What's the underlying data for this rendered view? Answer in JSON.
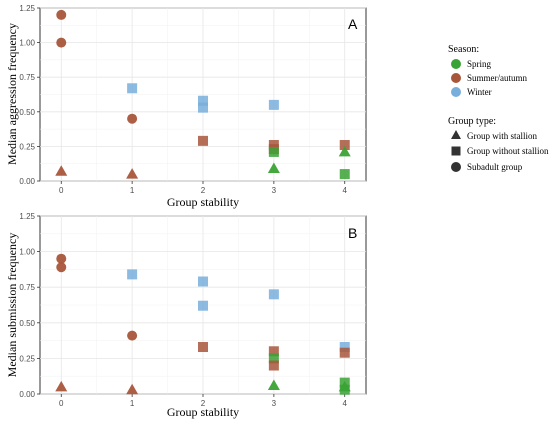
{
  "chart_data": [
    {
      "type": "scatter",
      "panel": "A",
      "xlabel": "Group stability",
      "ylabel": "Median aggression frequency",
      "xlim": [
        -0.3,
        4.3
      ],
      "ylim": [
        0,
        1.25
      ],
      "xticks": [
        "0",
        "1",
        "2",
        "3",
        "4"
      ],
      "yticks": [
        "0.00",
        "0.25",
        "0.50",
        "0.75",
        "1.00",
        "1.25"
      ],
      "grid": true,
      "points": [
        {
          "x": 0,
          "y": 1.2,
          "season": "summer",
          "group": "subadult"
        },
        {
          "x": 0,
          "y": 1.0,
          "season": "summer",
          "group": "subadult"
        },
        {
          "x": 0,
          "y": 0.07,
          "season": "summer",
          "group": "stallion"
        },
        {
          "x": 1,
          "y": 0.67,
          "season": "winter",
          "group": "nostallion"
        },
        {
          "x": 1,
          "y": 0.45,
          "season": "summer",
          "group": "subadult"
        },
        {
          "x": 1,
          "y": 0.05,
          "season": "summer",
          "group": "stallion"
        },
        {
          "x": 2,
          "y": 0.58,
          "season": "winter",
          "group": "nostallion"
        },
        {
          "x": 2,
          "y": 0.53,
          "season": "winter",
          "group": "nostallion"
        },
        {
          "x": 2,
          "y": 0.29,
          "season": "summer",
          "group": "nostallion"
        },
        {
          "x": 3,
          "y": 0.55,
          "season": "winter",
          "group": "nostallion"
        },
        {
          "x": 3,
          "y": 0.26,
          "season": "summer",
          "group": "nostallion"
        },
        {
          "x": 3,
          "y": 0.23,
          "season": "summer",
          "group": "nostallion"
        },
        {
          "x": 3,
          "y": 0.21,
          "season": "spring",
          "group": "nostallion"
        },
        {
          "x": 3,
          "y": 0.09,
          "season": "spring",
          "group": "stallion"
        },
        {
          "x": 4,
          "y": 0.26,
          "season": "summer",
          "group": "nostallion"
        },
        {
          "x": 4,
          "y": 0.21,
          "season": "spring",
          "group": "stallion"
        },
        {
          "x": 4,
          "y": 0.05,
          "season": "spring",
          "group": "nostallion"
        }
      ]
    },
    {
      "type": "scatter",
      "panel": "B",
      "xlabel": "Group stability",
      "ylabel": "Median submission frequency",
      "xlim": [
        -0.3,
        4.3
      ],
      "ylim": [
        0,
        1.25
      ],
      "xticks": [
        "0",
        "1",
        "2",
        "3",
        "4"
      ],
      "yticks": [
        "0.00",
        "0.25",
        "0.50",
        "0.75",
        "1.00",
        "1.25"
      ],
      "grid": true,
      "points": [
        {
          "x": 0,
          "y": 0.95,
          "season": "summer",
          "group": "subadult"
        },
        {
          "x": 0,
          "y": 0.89,
          "season": "summer",
          "group": "subadult"
        },
        {
          "x": 0,
          "y": 0.05,
          "season": "summer",
          "group": "stallion"
        },
        {
          "x": 1,
          "y": 0.84,
          "season": "winter",
          "group": "nostallion"
        },
        {
          "x": 1,
          "y": 0.41,
          "season": "summer",
          "group": "subadult"
        },
        {
          "x": 1,
          "y": 0.03,
          "season": "summer",
          "group": "stallion"
        },
        {
          "x": 2,
          "y": 0.79,
          "season": "winter",
          "group": "nostallion"
        },
        {
          "x": 2,
          "y": 0.62,
          "season": "winter",
          "group": "nostallion"
        },
        {
          "x": 2,
          "y": 0.33,
          "season": "summer",
          "group": "nostallion"
        },
        {
          "x": 3,
          "y": 0.7,
          "season": "winter",
          "group": "nostallion"
        },
        {
          "x": 3,
          "y": 0.3,
          "season": "summer",
          "group": "nostallion"
        },
        {
          "x": 3,
          "y": 0.25,
          "season": "spring",
          "group": "nostallion"
        },
        {
          "x": 3,
          "y": 0.2,
          "season": "summer",
          "group": "nostallion"
        },
        {
          "x": 3,
          "y": 0.06,
          "season": "spring",
          "group": "stallion"
        },
        {
          "x": 4,
          "y": 0.33,
          "season": "winter",
          "group": "nostallion"
        },
        {
          "x": 4,
          "y": 0.29,
          "season": "summer",
          "group": "nostallion"
        },
        {
          "x": 4,
          "y": 0.08,
          "season": "spring",
          "group": "nostallion"
        },
        {
          "x": 4,
          "y": 0.05,
          "season": "spring",
          "group": "stallion"
        },
        {
          "x": 4,
          "y": 0.03,
          "season": "spring",
          "group": "nostallion"
        }
      ]
    }
  ],
  "legend": {
    "season_title": "Season:",
    "season_items": [
      {
        "key": "spring",
        "label": "Spring",
        "color": "#3aa335"
      },
      {
        "key": "summer",
        "label": "Summer/autumn",
        "color": "#a8563b"
      },
      {
        "key": "winter",
        "label": "Winter",
        "color": "#78aedb"
      }
    ],
    "group_title": "Group type:",
    "group_items": [
      {
        "key": "stallion",
        "label": "Group with stallion",
        "shape": "triangle"
      },
      {
        "key": "nostallion",
        "label": "Group without stallion",
        "shape": "square"
      },
      {
        "key": "subadult",
        "label": "Subadult group",
        "shape": "circle"
      }
    ]
  }
}
